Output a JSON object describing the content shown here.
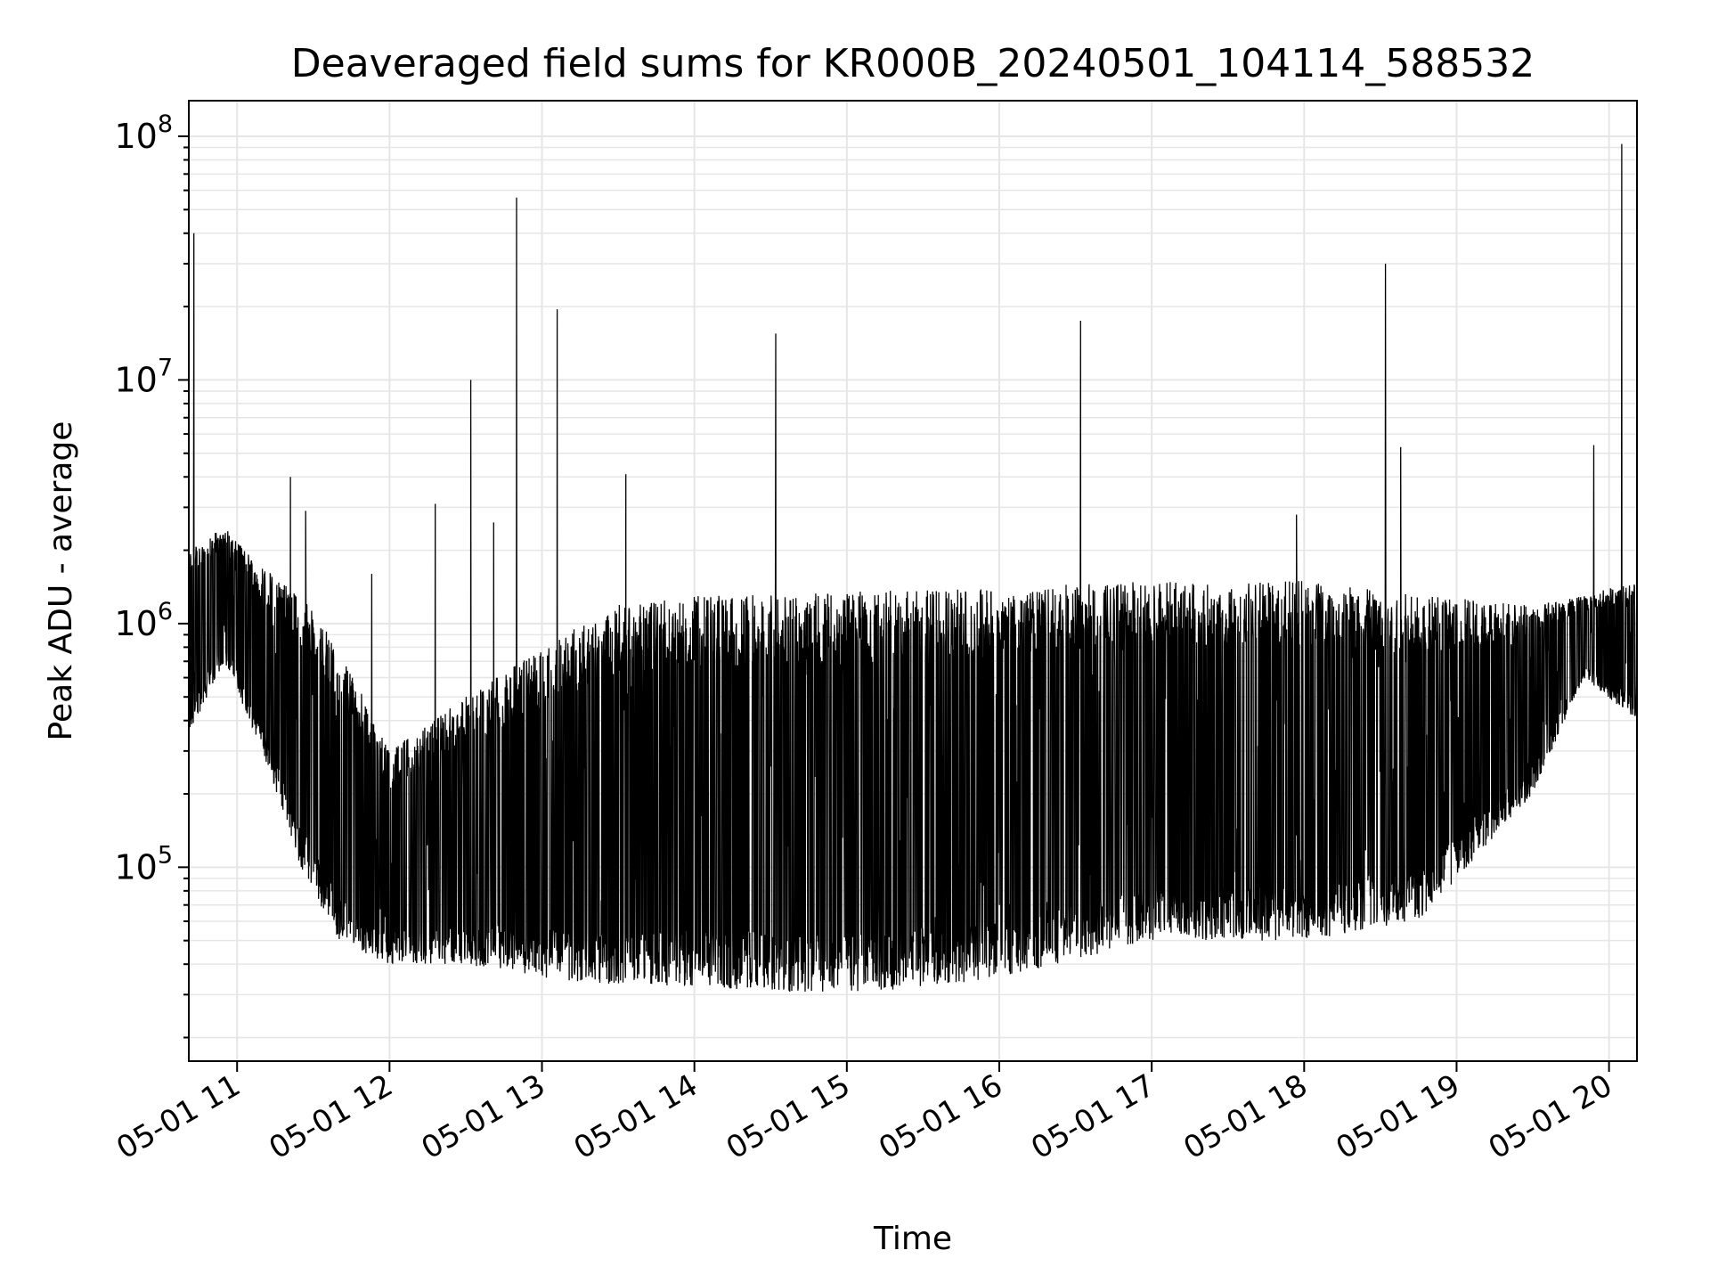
{
  "chart_data": {
    "type": "line",
    "title": "Deaveraged field sums for KR000B_20240501_104114_588532",
    "xlabel": "Time",
    "ylabel": "Peak ADU - average",
    "yscale": "log",
    "ylim": [
      16000,
      140000000
    ],
    "xlim": [
      "2024-05-01 10:41",
      "2024-05-01 20:11"
    ],
    "grid": true,
    "line_color": "#000000",
    "x_ticks": [
      "05-01 11",
      "05-01 12",
      "05-01 13",
      "05-01 14",
      "05-01 15",
      "05-01 16",
      "05-01 17",
      "05-01 18",
      "05-01 19",
      "05-01 20"
    ],
    "x_tick_times": [
      "2024-05-01 11:00",
      "2024-05-01 12:00",
      "2024-05-01 13:00",
      "2024-05-01 14:00",
      "2024-05-01 15:00",
      "2024-05-01 16:00",
      "2024-05-01 17:00",
      "2024-05-01 18:00",
      "2024-05-01 19:00",
      "2024-05-01 20:00"
    ],
    "y_ticks": [
      {
        "base": "10",
        "exp": "5",
        "value": 100000
      },
      {
        "base": "10",
        "exp": "6",
        "value": 1000000
      },
      {
        "base": "10",
        "exp": "7",
        "value": 10000000
      },
      {
        "base": "10",
        "exp": "8",
        "value": 100000000
      }
    ],
    "spikes": [
      {
        "time": "2024-05-01 10:43",
        "value": 40000000
      },
      {
        "time": "2024-05-01 11:21",
        "value": 4000000
      },
      {
        "time": "2024-05-01 11:27",
        "value": 2900000
      },
      {
        "time": "2024-05-01 11:53",
        "value": 1600000
      },
      {
        "time": "2024-05-01 12:18",
        "value": 3100000
      },
      {
        "time": "2024-05-01 12:32",
        "value": 10000000
      },
      {
        "time": "2024-05-01 12:41",
        "value": 2600000
      },
      {
        "time": "2024-05-01 12:50",
        "value": 56000000
      },
      {
        "time": "2024-05-01 13:06",
        "value": 19500000
      },
      {
        "time": "2024-05-01 13:33",
        "value": 4100000
      },
      {
        "time": "2024-05-01 14:32",
        "value": 15500000
      },
      {
        "time": "2024-05-01 16:32",
        "value": 17500000
      },
      {
        "time": "2024-05-01 17:57",
        "value": 2800000
      },
      {
        "time": "2024-05-01 18:32",
        "value": 30000000
      },
      {
        "time": "2024-05-01 18:38",
        "value": 5300000
      },
      {
        "time": "2024-05-01 19:54",
        "value": 5400000
      },
      {
        "time": "2024-05-01 20:05",
        "value": 93000000
      }
    ],
    "envelope": [
      {
        "time": "2024-05-01 10:41",
        "low": 350000,
        "high": 2000000
      },
      {
        "time": "2024-05-01 10:55",
        "low": 700000,
        "high": 2500000
      },
      {
        "time": "2024-05-01 11:10",
        "low": 300000,
        "high": 1700000
      },
      {
        "time": "2024-05-01 11:25",
        "low": 100000,
        "high": 1300000
      },
      {
        "time": "2024-05-01 11:40",
        "low": 50000,
        "high": 800000
      },
      {
        "time": "2024-05-01 12:00",
        "low": 40000,
        "high": 300000
      },
      {
        "time": "2024-05-01 12:30",
        "low": 40000,
        "high": 500000
      },
      {
        "time": "2024-05-01 13:00",
        "low": 35000,
        "high": 800000
      },
      {
        "time": "2024-05-01 13:30",
        "low": 33000,
        "high": 1200000
      },
      {
        "time": "2024-05-01 14:00",
        "low": 32000,
        "high": 1300000
      },
      {
        "time": "2024-05-01 15:00",
        "low": 30000,
        "high": 1350000
      },
      {
        "time": "2024-05-01 16:00",
        "low": 35000,
        "high": 1400000
      },
      {
        "time": "2024-05-01 17:00",
        "low": 50000,
        "high": 1500000
      },
      {
        "time": "2024-05-01 18:00",
        "low": 50000,
        "high": 1500000
      },
      {
        "time": "2024-05-01 18:45",
        "low": 60000,
        "high": 1300000
      },
      {
        "time": "2024-05-01 19:30",
        "low": 200000,
        "high": 1200000
      },
      {
        "time": "2024-05-01 19:50",
        "low": 600000,
        "high": 1300000
      },
      {
        "time": "2024-05-01 20:11",
        "low": 400000,
        "high": 1500000
      }
    ]
  }
}
